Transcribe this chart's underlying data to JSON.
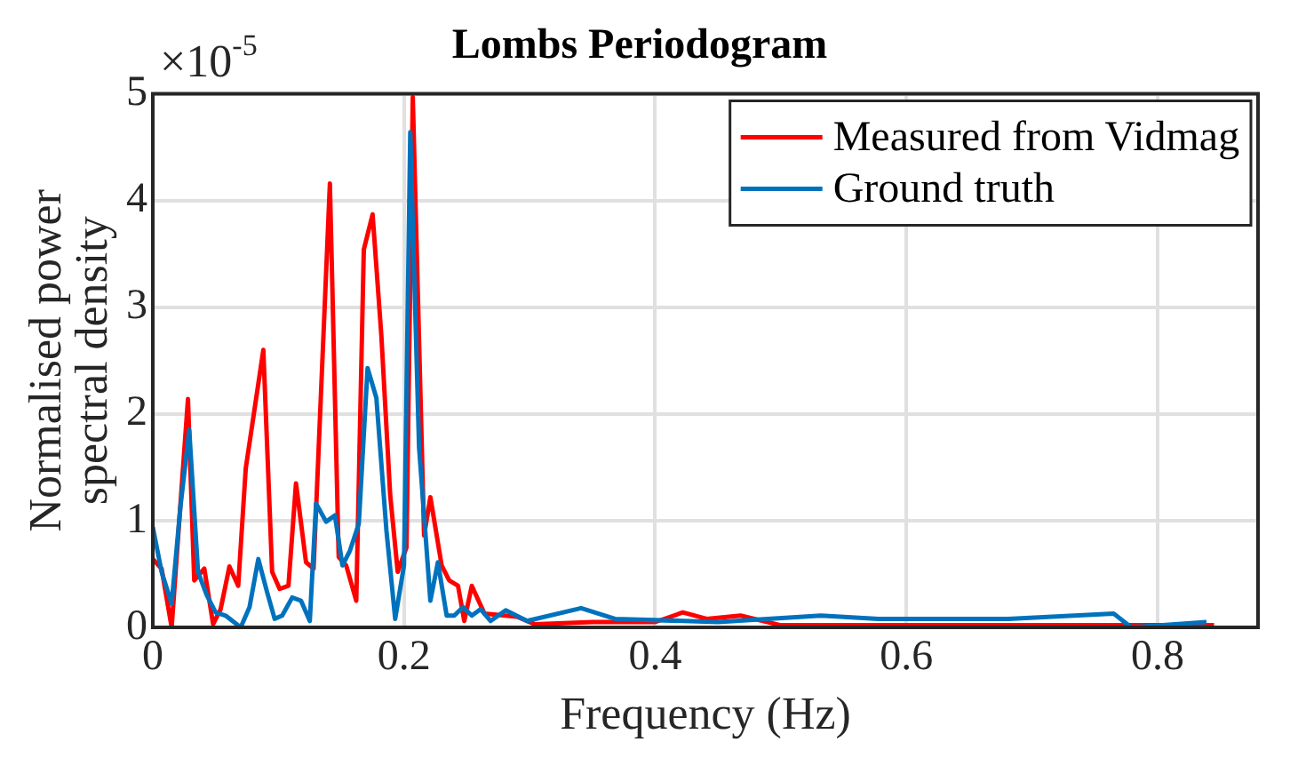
{
  "chart_data": {
    "type": "line",
    "title": "Lombs Periodogram",
    "xlabel": "Frequency (Hz)",
    "ylabel": "Normalised power\nspectral density",
    "annotations": [
      "×10$^{-5}$"
    ],
    "xlim": [
      0,
      0.88
    ],
    "xticks": [
      0,
      0.2,
      0.4,
      0.6,
      0.8
    ],
    "ylim": [
      0,
      5
    ],
    "yticks": [
      0,
      1,
      2,
      3,
      4,
      5
    ],
    "grid": true,
    "legend": "top right",
    "marker": "none",
    "line_style": "solid",
    "series": [
      {
        "name": "Measured from Vidmag",
        "color": "#ff0000",
        "x": [
          0,
          0.007,
          0.015,
          0.028,
          0.033,
          0.041,
          0.048,
          0.054,
          0.061,
          0.068,
          0.074,
          0.088,
          0.095,
          0.101,
          0.108,
          0.114,
          0.122,
          0.128,
          0.141,
          0.148,
          0.154,
          0.162,
          0.168,
          0.175,
          0.182,
          0.189,
          0.195,
          0.202,
          0.207,
          0.216,
          0.221,
          0.23,
          0.236,
          0.243,
          0.248,
          0.254,
          0.264,
          0.29,
          0.304,
          0.35,
          0.4,
          0.422,
          0.441,
          0.468,
          0.5,
          0.6,
          0.7,
          0.8,
          0.845
        ],
        "values": [
          0.64,
          0.55,
          0,
          2.14,
          0.44,
          0.55,
          0.03,
          0.17,
          0.57,
          0.39,
          1.49,
          2.6,
          0.52,
          0.36,
          0.39,
          1.35,
          0.61,
          0.55,
          4.16,
          0.66,
          0.58,
          0.25,
          3.54,
          3.87,
          2.73,
          1.24,
          0.52,
          0.75,
          4.97,
          0.86,
          1.22,
          0.58,
          0.44,
          0.39,
          0.06,
          0.39,
          0.13,
          0.1,
          0.03,
          0.05,
          0.05,
          0.14,
          0.08,
          0.11,
          0.02,
          0.02,
          0.02,
          0.02,
          0.02
        ]
      },
      {
        "name": "Ground truth",
        "color": "#0072bd",
        "x": [
          0,
          0.007,
          0.015,
          0.022,
          0.029,
          0.036,
          0.043,
          0.05,
          0.058,
          0.07,
          0.077,
          0.084,
          0.091,
          0.097,
          0.103,
          0.111,
          0.118,
          0.125,
          0.13,
          0.138,
          0.145,
          0.151,
          0.157,
          0.164,
          0.171,
          0.178,
          0.186,
          0.193,
          0.2,
          0.205,
          0.212,
          0.221,
          0.227,
          0.234,
          0.24,
          0.247,
          0.254,
          0.261,
          0.269,
          0.281,
          0.298,
          0.341,
          0.368,
          0.45,
          0.532,
          0.578,
          0.681,
          0.765,
          0.779,
          0.839
        ],
        "values": [
          0.94,
          0.52,
          0.22,
          1.13,
          1.85,
          0.52,
          0.3,
          0.14,
          0.11,
          0,
          0.19,
          0.64,
          0.33,
          0.08,
          0.11,
          0.28,
          0.25,
          0.06,
          1.16,
          0.99,
          1.05,
          0.58,
          0.72,
          0.97,
          2.43,
          2.15,
          0.91,
          0.08,
          0.58,
          4.64,
          1.69,
          0.25,
          0.61,
          0.11,
          0.11,
          0.19,
          0.11,
          0.17,
          0.06,
          0.16,
          0.06,
          0.18,
          0.08,
          0.05,
          0.11,
          0.08,
          0.08,
          0.13,
          0,
          0.05
        ]
      }
    ]
  }
}
